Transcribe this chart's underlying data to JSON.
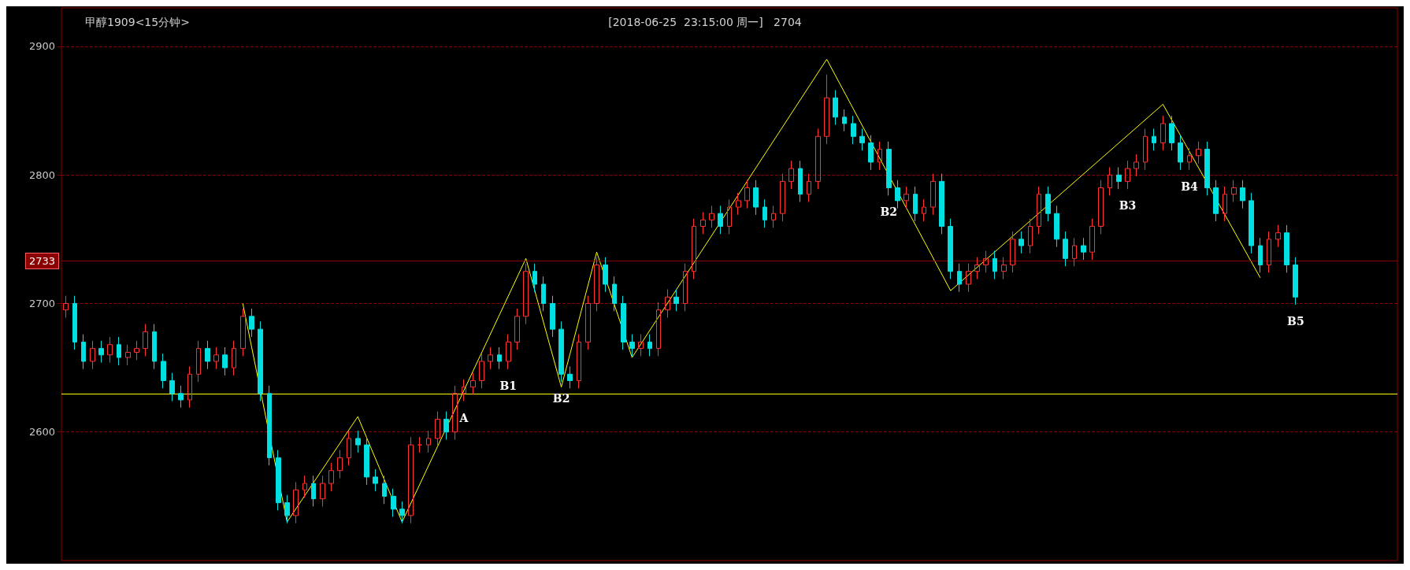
{
  "chart_data": {
    "type": "candlestick",
    "title": "甲醇1909<15分钟>",
    "subtitle": "[2018-06-25  23:15:00 周一]   2704",
    "categories": [
      null,
      null,
      null,
      null,
      null,
      null,
      null,
      null,
      null,
      null,
      null,
      null,
      null,
      null,
      null,
      null,
      null,
      null,
      null,
      null,
      null,
      null,
      null,
      null,
      null,
      null,
      null,
      null,
      null,
      null,
      null,
      null,
      null,
      null,
      null,
      null,
      null,
      null,
      null,
      null,
      null,
      null,
      null,
      null,
      null,
      null,
      null,
      null,
      null,
      null,
      null,
      null,
      null,
      null,
      null,
      null,
      null,
      null,
      null,
      null,
      null,
      null,
      null,
      null,
      null,
      null,
      null,
      null,
      null,
      null,
      null,
      null,
      null,
      null,
      null,
      null,
      null,
      null,
      null,
      null,
      null,
      null,
      null,
      null,
      null,
      null,
      null,
      null,
      null,
      null,
      null,
      null,
      null,
      null,
      null,
      null,
      null,
      null,
      null,
      null,
      null,
      null,
      null,
      null,
      null,
      null,
      null,
      null,
      null,
      null,
      null,
      null,
      null,
      null,
      null,
      null,
      null,
      null,
      null,
      null,
      null,
      null,
      null,
      null,
      null,
      null,
      null,
      null,
      null,
      null,
      null,
      null,
      null,
      null,
      null,
      null,
      null,
      null,
      null,
      null,
      null,
      null,
      null,
      null,
      null,
      null,
      null,
      null,
      null,
      null,
      null
    ],
    "ylim": [
      2500,
      2930
    ],
    "yticks": [
      2600,
      2700,
      2800,
      2900
    ],
    "grid": "y",
    "tick_labels": "y",
    "marker": "none",
    "ref_lines": [
      {
        "axis": "y",
        "value": 2630,
        "color": "#ffff00",
        "line_style": "solid"
      },
      {
        "axis": "y",
        "value": 2733,
        "label": "2733",
        "color": "#8b0000",
        "line_style": "solid"
      }
    ],
    "series": [
      {
        "colors": [
          "#ff3232",
          "#00e0e0",
          "#00e0e0",
          "#ff3232",
          "#00e0e0",
          "#ff3232",
          "#00e0e0",
          "#ff3232",
          "#ff3232",
          "#ff3232",
          "#00e0e0",
          "#00e0e0",
          "#00e0e0",
          "#00e0e0",
          "#ff3232",
          "#ff3232",
          "#00e0e0",
          "#ff3232",
          "#00e0e0",
          "#ff3232",
          "#ff3232",
          "#00e0e0",
          "#00e0e0",
          "#00e0e0",
          "#00e0e0",
          "#00e0e0",
          "#ff3232",
          "#ff3232",
          "#00e0e0",
          "#ff3232",
          "#ff3232",
          "#ff3232",
          "#ff3232",
          "#00e0e0",
          "#00e0e0",
          "#00e0e0",
          "#00e0e0",
          "#00e0e0",
          "#00e0e0",
          "#ff3232",
          "#ff3232",
          "#ff3232",
          "#ff3232",
          "#00e0e0",
          "#ff3232",
          "#ff3232",
          "#ff3232",
          "#ff3232",
          "#ff3232",
          "#00e0e0",
          "#ff3232",
          "#ff3232",
          "#ff3232",
          "#00e0e0",
          "#00e0e0",
          "#00e0e0",
          "#00e0e0",
          "#00e0e0",
          "#ff3232",
          "#ff3232",
          "#ff3232",
          "#00e0e0",
          "#00e0e0",
          "#00e0e0",
          "#00e0e0",
          "#ff3232",
          "#00e0e0",
          "#ff3232",
          "#ff3232",
          "#00e0e0",
          "#ff3232",
          "#ff3232",
          "#ff3232",
          "#ff3232",
          "#00e0e0",
          "#ff3232",
          "#ff3232",
          "#ff3232",
          "#00e0e0",
          "#00e0e0",
          "#ff3232",
          "#ff3232",
          "#ff3232",
          "#00e0e0",
          "#ff3232",
          "#ff3232",
          "#ff3232",
          "#00e0e0",
          "#00e0e0",
          "#00e0e0",
          "#00e0e0",
          "#00e0e0",
          "#ff3232",
          "#00e0e0",
          "#00e0e0",
          "#ff3232",
          "#00e0e0",
          "#ff3232",
          "#ff3232",
          "#00e0e0",
          "#00e0e0",
          "#00e0e0",
          "#ff3232",
          "#ff3232",
          "#ff3232",
          "#00e0e0",
          "#ff3232",
          "#ff3232",
          "#00e0e0",
          "#ff3232",
          "#ff3232",
          "#00e0e0",
          "#00e0e0",
          "#00e0e0",
          "#ff3232",
          "#00e0e0",
          "#ff3232",
          "#ff3232",
          "#ff3232",
          "#00e0e0",
          "#ff3232",
          "#ff3232",
          "#ff3232",
          "#00e0e0",
          "#ff3232",
          "#00e0e0",
          "#00e0e0",
          "#ff3232",
          "#ff3232",
          "#00e0e0",
          "#00e0e0",
          "#ff3232",
          "#ff3232",
          "#00e0e0",
          "#00e0e0",
          "#00e0e0",
          "#ff3232",
          "#ff3232",
          "#00e0e0",
          "#00e0e0",
          null,
          null,
          null,
          null,
          null,
          null,
          null,
          null,
          null,
          null,
          null
        ],
        "value_labels": [
          null,
          null,
          null,
          null,
          null,
          null,
          null,
          null,
          null,
          null,
          null,
          null,
          null,
          null,
          null,
          null,
          null,
          null,
          null,
          null,
          null,
          null,
          null,
          null,
          null,
          null,
          null,
          null,
          null,
          null,
          null,
          null,
          null,
          null,
          null,
          null,
          null,
          null,
          null,
          null,
          null,
          null,
          null,
          null,
          null,
          "A",
          null,
          null,
          null,
          null,
          "B1",
          null,
          null,
          null,
          null,
          null,
          "B2",
          null,
          null,
          null,
          null,
          null,
          null,
          null,
          null,
          null,
          null,
          null,
          null,
          null,
          null,
          null,
          null,
          null,
          null,
          null,
          null,
          null,
          null,
          null,
          null,
          null,
          null,
          null,
          null,
          null,
          null,
          null,
          null,
          null,
          null,
          null,
          null,
          "B2",
          null,
          null,
          null,
          null,
          null,
          null,
          null,
          null,
          null,
          null,
          null,
          null,
          null,
          null,
          null,
          null,
          null,
          null,
          null,
          null,
          null,
          null,
          null,
          null,
          null,
          null,
          "B3",
          null,
          null,
          null,
          null,
          null,
          null,
          "B4",
          null,
          null,
          null,
          null,
          null,
          null,
          null,
          null,
          null,
          null,
          null,
          "B5",
          null,
          null,
          null,
          null,
          null,
          null,
          null,
          null,
          null,
          null,
          null
        ],
        "ohlc": [
          [
            2695,
            2706,
            2689,
            2700
          ],
          [
            2700,
            2706,
            2664,
            2670
          ],
          [
            2670,
            2676,
            2649,
            2655
          ],
          [
            2655,
            2671,
            2649,
            2665
          ],
          [
            2665,
            2671,
            2654,
            2660
          ],
          [
            2660,
            2674,
            2654,
            2668
          ],
          [
            2668,
            2674,
            2652,
            2658
          ],
          [
            2658,
            2668,
            2652,
            2662
          ],
          [
            2662,
            2671,
            2656,
            2665
          ],
          [
            2665,
            2684,
            2659,
            2678
          ],
          [
            2678,
            2684,
            2649,
            2655
          ],
          [
            2655,
            2661,
            2634,
            2640
          ],
          [
            2640,
            2646,
            2624,
            2630
          ],
          [
            2630,
            2636,
            2619,
            2625
          ],
          [
            2625,
            2651,
            2619,
            2645
          ],
          [
            2645,
            2671,
            2639,
            2665
          ],
          [
            2665,
            2671,
            2649,
            2655
          ],
          [
            2655,
            2666,
            2649,
            2660
          ],
          [
            2660,
            2666,
            2644,
            2650
          ],
          [
            2650,
            2671,
            2644,
            2665
          ],
          [
            2665,
            2696,
            2659,
            2690
          ],
          [
            2690,
            2696,
            2674,
            2680
          ],
          [
            2680,
            2686,
            2624,
            2630
          ],
          [
            2630,
            2636,
            2574,
            2580
          ],
          [
            2580,
            2586,
            2539,
            2545
          ],
          [
            2545,
            2551,
            2529,
            2535
          ],
          [
            2535,
            2561,
            2529,
            2555
          ],
          [
            2555,
            2566,
            2549,
            2560
          ],
          [
            2560,
            2566,
            2542,
            2548
          ],
          [
            2548,
            2566,
            2542,
            2560
          ],
          [
            2560,
            2576,
            2554,
            2570
          ],
          [
            2570,
            2586,
            2564,
            2580
          ],
          [
            2580,
            2601,
            2574,
            2595
          ],
          [
            2595,
            2601,
            2584,
            2590
          ],
          [
            2590,
            2596,
            2559,
            2565
          ],
          [
            2565,
            2571,
            2554,
            2560
          ],
          [
            2560,
            2566,
            2544,
            2550
          ],
          [
            2550,
            2556,
            2534,
            2540
          ],
          [
            2540,
            2546,
            2529,
            2535
          ],
          [
            2535,
            2596,
            2529,
            2590
          ],
          [
            2590,
            2596,
            2584,
            2590
          ],
          [
            2590,
            2601,
            2584,
            2595
          ],
          [
            2595,
            2616,
            2589,
            2610
          ],
          [
            2610,
            2616,
            2594,
            2600
          ],
          [
            2600,
            2636,
            2594,
            2630
          ],
          [
            2630,
            2641,
            2624,
            2635
          ],
          [
            2635,
            2646,
            2629,
            2640
          ],
          [
            2640,
            2661,
            2634,
            2655
          ],
          [
            2655,
            2666,
            2649,
            2660
          ],
          [
            2660,
            2666,
            2649,
            2655
          ],
          [
            2655,
            2676,
            2649,
            2670
          ],
          [
            2670,
            2696,
            2664,
            2690
          ],
          [
            2690,
            2731,
            2684,
            2725
          ],
          [
            2725,
            2731,
            2709,
            2715
          ],
          [
            2715,
            2721,
            2694,
            2700
          ],
          [
            2700,
            2706,
            2674,
            2680
          ],
          [
            2680,
            2686,
            2639,
            2645
          ],
          [
            2645,
            2651,
            2634,
            2640
          ],
          [
            2640,
            2676,
            2634,
            2670
          ],
          [
            2670,
            2706,
            2664,
            2700
          ],
          [
            2700,
            2736,
            2694,
            2730
          ],
          [
            2730,
            2736,
            2709,
            2715
          ],
          [
            2715,
            2721,
            2694,
            2700
          ],
          [
            2700,
            2706,
            2664,
            2670
          ],
          [
            2670,
            2676,
            2659,
            2665
          ],
          [
            2665,
            2676,
            2659,
            2670
          ],
          [
            2670,
            2676,
            2659,
            2665
          ],
          [
            2665,
            2701,
            2659,
            2695
          ],
          [
            2695,
            2711,
            2689,
            2705
          ],
          [
            2705,
            2711,
            2694,
            2700
          ],
          [
            2700,
            2731,
            2694,
            2725
          ],
          [
            2725,
            2766,
            2719,
            2760
          ],
          [
            2760,
            2771,
            2754,
            2765
          ],
          [
            2765,
            2776,
            2759,
            2770
          ],
          [
            2770,
            2776,
            2754,
            2760
          ],
          [
            2760,
            2781,
            2754,
            2775
          ],
          [
            2775,
            2786,
            2769,
            2780
          ],
          [
            2780,
            2796,
            2774,
            2790
          ],
          [
            2790,
            2796,
            2769,
            2775
          ],
          [
            2775,
            2781,
            2759,
            2765
          ],
          [
            2765,
            2776,
            2759,
            2770
          ],
          [
            2770,
            2801,
            2764,
            2795
          ],
          [
            2795,
            2811,
            2789,
            2805
          ],
          [
            2805,
            2811,
            2779,
            2785
          ],
          [
            2785,
            2801,
            2779,
            2795
          ],
          [
            2795,
            2836,
            2789,
            2830
          ],
          [
            2830,
            2878,
            2824,
            2860
          ],
          [
            2860,
            2866,
            2839,
            2845
          ],
          [
            2845,
            2851,
            2834,
            2840
          ],
          [
            2840,
            2846,
            2824,
            2830
          ],
          [
            2830,
            2836,
            2819,
            2825
          ],
          [
            2825,
            2831,
            2804,
            2810
          ],
          [
            2810,
            2826,
            2804,
            2820
          ],
          [
            2820,
            2826,
            2784,
            2790
          ],
          [
            2790,
            2796,
            2774,
            2780
          ],
          [
            2780,
            2791,
            2774,
            2785
          ],
          [
            2785,
            2791,
            2764,
            2770
          ],
          [
            2770,
            2781,
            2764,
            2775
          ],
          [
            2775,
            2801,
            2769,
            2795
          ],
          [
            2795,
            2801,
            2754,
            2760
          ],
          [
            2760,
            2766,
            2719,
            2725
          ],
          [
            2725,
            2731,
            2709,
            2715
          ],
          [
            2715,
            2731,
            2709,
            2725
          ],
          [
            2725,
            2736,
            2719,
            2730
          ],
          [
            2730,
            2741,
            2724,
            2735
          ],
          [
            2735,
            2741,
            2719,
            2725
          ],
          [
            2725,
            2736,
            2719,
            2730
          ],
          [
            2730,
            2756,
            2724,
            2750
          ],
          [
            2750,
            2756,
            2739,
            2745
          ],
          [
            2745,
            2766,
            2739,
            2760
          ],
          [
            2760,
            2791,
            2754,
            2785
          ],
          [
            2785,
            2791,
            2764,
            2770
          ],
          [
            2770,
            2776,
            2744,
            2750
          ],
          [
            2750,
            2756,
            2729,
            2735
          ],
          [
            2735,
            2751,
            2729,
            2745
          ],
          [
            2745,
            2751,
            2734,
            2740
          ],
          [
            2740,
            2766,
            2734,
            2760
          ],
          [
            2760,
            2796,
            2754,
            2790
          ],
          [
            2790,
            2806,
            2784,
            2800
          ],
          [
            2800,
            2806,
            2789,
            2795
          ],
          [
            2795,
            2811,
            2789,
            2805
          ],
          [
            2805,
            2816,
            2799,
            2810
          ],
          [
            2810,
            2836,
            2804,
            2830
          ],
          [
            2830,
            2836,
            2819,
            2825
          ],
          [
            2825,
            2846,
            2819,
            2840
          ],
          [
            2840,
            2846,
            2819,
            2825
          ],
          [
            2825,
            2831,
            2804,
            2810
          ],
          [
            2810,
            2821,
            2804,
            2815
          ],
          [
            2815,
            2826,
            2809,
            2820
          ],
          [
            2820,
            2826,
            2784,
            2790
          ],
          [
            2790,
            2796,
            2764,
            2770
          ],
          [
            2770,
            2791,
            2764,
            2785
          ],
          [
            2785,
            2796,
            2779,
            2790
          ],
          [
            2790,
            2796,
            2774,
            2780
          ],
          [
            2780,
            2786,
            2739,
            2745
          ],
          [
            2745,
            2751,
            2724,
            2730
          ],
          [
            2730,
            2756,
            2724,
            2750
          ],
          [
            2750,
            2761,
            2744,
            2755
          ],
          [
            2755,
            2761,
            2724,
            2730
          ],
          [
            2730,
            2736,
            2699,
            2705
          ],
          null,
          null,
          null,
          null,
          null,
          null,
          null,
          null,
          null,
          null,
          null
        ]
      },
      {
        "type": "line",
        "color": "#ffff00",
        "values": [
          null,
          null,
          null,
          null,
          null,
          null,
          null,
          null,
          null,
          null,
          null,
          null,
          null,
          null,
          null,
          null,
          null,
          null,
          null,
          null,
          2700,
          null,
          null,
          null,
          null,
          2530,
          null,
          null,
          null,
          null,
          null,
          null,
          null,
          2612,
          null,
          null,
          null,
          null,
          2530,
          null,
          null,
          null,
          null,
          null,
          null,
          null,
          null,
          null,
          null,
          null,
          null,
          null,
          2735,
          null,
          null,
          null,
          2635,
          null,
          null,
          null,
          2740,
          null,
          null,
          null,
          2658,
          null,
          null,
          null,
          null,
          null,
          null,
          null,
          null,
          null,
          null,
          null,
          null,
          null,
          null,
          null,
          null,
          null,
          null,
          null,
          null,
          null,
          2890,
          null,
          null,
          null,
          null,
          null,
          null,
          null,
          null,
          null,
          null,
          null,
          null,
          null,
          2710,
          null,
          null,
          null,
          null,
          null,
          null,
          null,
          null,
          null,
          null,
          null,
          null,
          null,
          null,
          null,
          null,
          null,
          null,
          null,
          null,
          null,
          null,
          null,
          2855,
          null,
          null,
          null,
          null,
          null,
          null,
          null,
          null,
          null,
          null,
          2720,
          null,
          null,
          null,
          null,
          null,
          null,
          null,
          null,
          null,
          null,
          null,
          null,
          null,
          null,
          null
        ]
      }
    ]
  }
}
